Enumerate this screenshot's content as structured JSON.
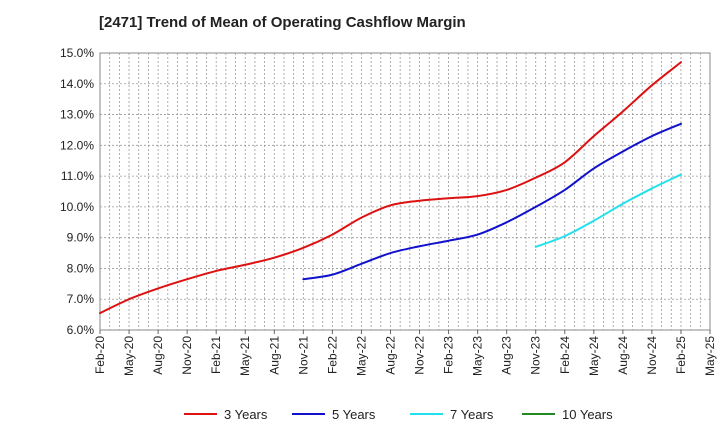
{
  "chart_data": {
    "type": "line",
    "title": "[2471]  Trend of Mean of Operating Cashflow Margin",
    "xlabel": "",
    "ylabel": "",
    "x": [
      "Feb-20",
      "May-20",
      "Aug-20",
      "Nov-20",
      "Feb-21",
      "May-21",
      "Aug-21",
      "Nov-21",
      "Feb-22",
      "May-22",
      "Aug-22",
      "Nov-22",
      "Feb-23",
      "May-23",
      "Aug-23",
      "Nov-23",
      "Feb-24",
      "May-24",
      "Aug-24",
      "Nov-24",
      "Feb-25",
      "May-25"
    ],
    "ylim": [
      6.0,
      15.0
    ],
    "yticks": [
      "6.0%",
      "7.0%",
      "8.0%",
      "9.0%",
      "10.0%",
      "11.0%",
      "12.0%",
      "13.0%",
      "14.0%",
      "15.0%"
    ],
    "grid": true,
    "legend_position": "bottom",
    "series": [
      {
        "name": "3 Years",
        "color": "#dd1111",
        "values": [
          6.55,
          7.0,
          7.35,
          7.65,
          7.92,
          8.12,
          8.35,
          8.67,
          9.1,
          9.65,
          10.05,
          10.2,
          10.28,
          10.35,
          10.55,
          10.95,
          11.45,
          12.3,
          13.1,
          13.95,
          14.7,
          null
        ]
      },
      {
        "name": "5 Years",
        "color": "#1111cc",
        "values": [
          null,
          null,
          null,
          null,
          null,
          null,
          null,
          7.65,
          7.8,
          8.15,
          8.5,
          8.72,
          8.9,
          9.1,
          9.5,
          10.0,
          10.55,
          11.25,
          11.8,
          12.3,
          12.7,
          null
        ]
      },
      {
        "name": "7 Years",
        "color": "#22e0ee",
        "values": [
          null,
          null,
          null,
          null,
          null,
          null,
          null,
          null,
          null,
          null,
          null,
          null,
          null,
          null,
          null,
          8.7,
          9.05,
          9.55,
          10.1,
          10.6,
          11.05,
          null
        ]
      },
      {
        "name": "10 Years",
        "color": "#228822",
        "values": [
          null,
          null,
          null,
          null,
          null,
          null,
          null,
          null,
          null,
          null,
          null,
          null,
          null,
          null,
          null,
          null,
          null,
          null,
          null,
          null,
          null,
          null
        ]
      }
    ]
  }
}
